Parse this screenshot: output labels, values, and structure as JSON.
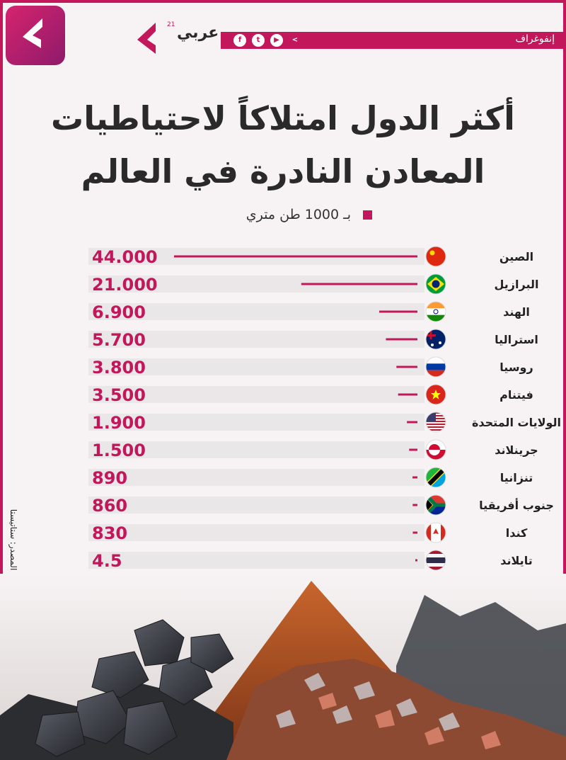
{
  "header": {
    "brand_name": "عربي",
    "brand_superscript": "21",
    "section_label": "إنفوغراف",
    "social_icons": [
      "facebook-icon",
      "twitter-icon",
      "youtube-icon",
      "arabi21-icon"
    ]
  },
  "title": {
    "line1": "أكثر الدول امتلاكاً لاحتياطيات",
    "line2": "المعادن النادرة في العالم"
  },
  "unit_label": "بـ 1000 طن متري",
  "source_label": "المصدر: ستاتيستا",
  "colors": {
    "accent": "#c2185b",
    "row_background": "#e9e7e8",
    "text": "#2a2a2a"
  },
  "chart_data": {
    "type": "bar",
    "orientation": "horizontal",
    "unit": "بـ 1000 طن متري",
    "categories": [
      "الصين",
      "البرازيل",
      "الهند",
      "استراليا",
      "روسيا",
      "فيتنام",
      "الولايات المتحدة",
      "جرينلاند",
      "تنزانيا",
      "جنوب أفريقيا",
      "كندا",
      "تايلاند"
    ],
    "value_labels": [
      "44.000",
      "21.000",
      "6.900",
      "5.700",
      "3.800",
      "3.500",
      "1.900",
      "1.500",
      "890",
      "860",
      "830",
      "4.5"
    ],
    "values": [
      44000,
      21000,
      6900,
      5700,
      3800,
      3500,
      1900,
      1500,
      890,
      860,
      830,
      4.5
    ],
    "flags": [
      "china-flag-icon",
      "brazil-flag-icon",
      "india-flag-icon",
      "australia-flag-icon",
      "russia-flag-icon",
      "vietnam-flag-icon",
      "usa-flag-icon",
      "greenland-flag-icon",
      "tanzania-flag-icon",
      "south-africa-flag-icon",
      "canada-flag-icon",
      "thailand-flag-icon"
    ],
    "xlim": [
      0,
      44000
    ]
  }
}
